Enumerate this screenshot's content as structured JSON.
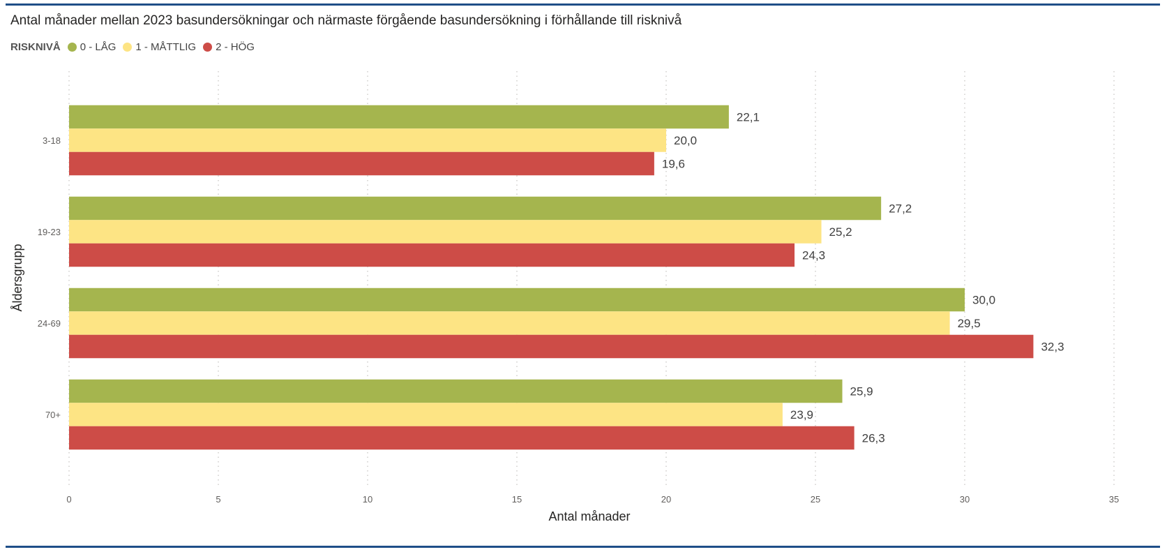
{
  "chart_data": {
    "type": "bar",
    "orientation": "horizontal",
    "title": "Antal månader mellan 2023 basundersökningar och närmaste förgående basundersökning i förhållande till risknivå",
    "xlabel": "Antal månader",
    "ylabel": "Åldersgrupp",
    "legend_title": "RISKNIVÅ",
    "legend_position": "top-left",
    "categories": [
      "3-18",
      "19-23",
      "24-69",
      "70+"
    ],
    "xlim": [
      0,
      35
    ],
    "xticks": [
      "0",
      "5",
      "10",
      "15",
      "20",
      "25",
      "30",
      "35"
    ],
    "grid": true,
    "series": [
      {
        "name": "0 - LÅG",
        "color": "#a5b54e",
        "values": [
          22.1,
          27.2,
          30.0,
          25.9
        ],
        "labels": [
          "22,1",
          "27,2",
          "30,0",
          "25,9"
        ]
      },
      {
        "name": "1 - MÅTTLIG",
        "color": "#fde484",
        "values": [
          20.0,
          25.2,
          29.5,
          23.9
        ],
        "labels": [
          "20,0",
          "25,2",
          "29,5",
          "23,9"
        ]
      },
      {
        "name": "2 - HÖG",
        "color": "#cd4c47",
        "values": [
          19.6,
          24.3,
          32.3,
          26.3
        ],
        "labels": [
          "19,6",
          "24,3",
          "32,3",
          "26,3"
        ]
      }
    ]
  }
}
